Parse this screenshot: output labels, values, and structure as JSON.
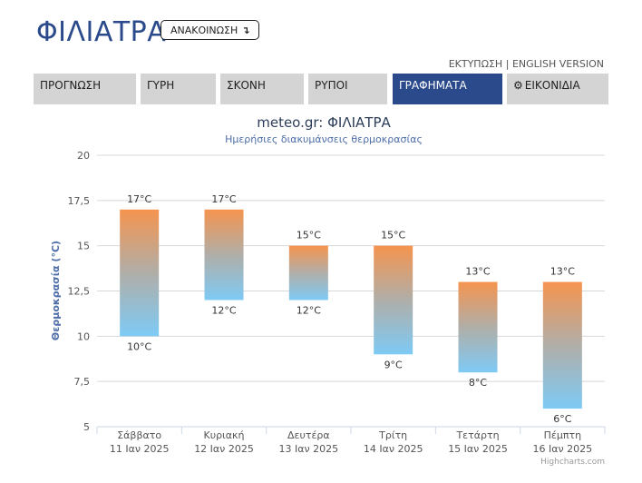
{
  "header": {
    "site_title": "ΦΙΛΙΑΤΡΑ",
    "announce_label": "ΑΝΑΚΟΙΝΩΣΗ",
    "announce_icon": "↴",
    "print_link": "ΕΚΤΥΠΩΣΗ",
    "separator": "|",
    "english_link": "ENGLISH VERSION"
  },
  "tabs": [
    {
      "label": "ΠΡΟΓΝΩΣΗ",
      "active": false
    },
    {
      "label": "ΓΥΡΗ",
      "active": false
    },
    {
      "label": "ΣΚΟΝΗ",
      "active": false
    },
    {
      "label": "ΡΥΠΟΙ",
      "active": false
    },
    {
      "label": "ΓΡΑΦΗΜΑΤΑ",
      "active": true
    },
    {
      "label": "ΕΙΚΟΝΙΔΙΑ",
      "active": false,
      "icon": "gear-icon"
    }
  ],
  "colors": {
    "accent": "#2b4a8b",
    "bar_top": "#f5944f",
    "bar_bottom": "#7ecaf5",
    "tab_bg": "#d4d4d4",
    "grid": "#d8d8d8"
  },
  "chart_data": {
    "type": "bar",
    "title": "meteo.gr: ΦΙΛΙΑΤΡΑ",
    "subtitle": "Ημερήσιες διακυμάνσεις θερμοκρασίας",
    "ylabel": "Θερμοκρασία (°C)",
    "ylim": [
      5,
      20
    ],
    "yticks": [
      "5",
      "7,5",
      "10",
      "12,5",
      "15",
      "17,5",
      "20"
    ],
    "ytick_values": [
      5,
      7.5,
      10,
      12.5,
      15,
      17.5,
      20
    ],
    "categories": [
      {
        "day": "Σάββατο",
        "date": "11 Ιαν 2025"
      },
      {
        "day": "Κυριακή",
        "date": "12 Ιαν 2025"
      },
      {
        "day": "Δευτέρα",
        "date": "13 Ιαν 2025"
      },
      {
        "day": "Τρίτη",
        "date": "14 Ιαν 2025"
      },
      {
        "day": "Τετάρτη",
        "date": "15 Ιαν 2025"
      },
      {
        "day": "Πέμπτη",
        "date": "16 Ιαν 2025"
      }
    ],
    "low": [
      10,
      12,
      12,
      9,
      8,
      6
    ],
    "high": [
      17,
      17,
      15,
      15,
      13,
      13
    ],
    "low_labels": [
      "10°C",
      "12°C",
      "12°C",
      "9°C",
      "8°C",
      "6°C"
    ],
    "high_labels": [
      "17°C",
      "17°C",
      "15°C",
      "15°C",
      "13°C",
      "13°C"
    ],
    "grid": true,
    "credits": "Highcharts.com"
  }
}
